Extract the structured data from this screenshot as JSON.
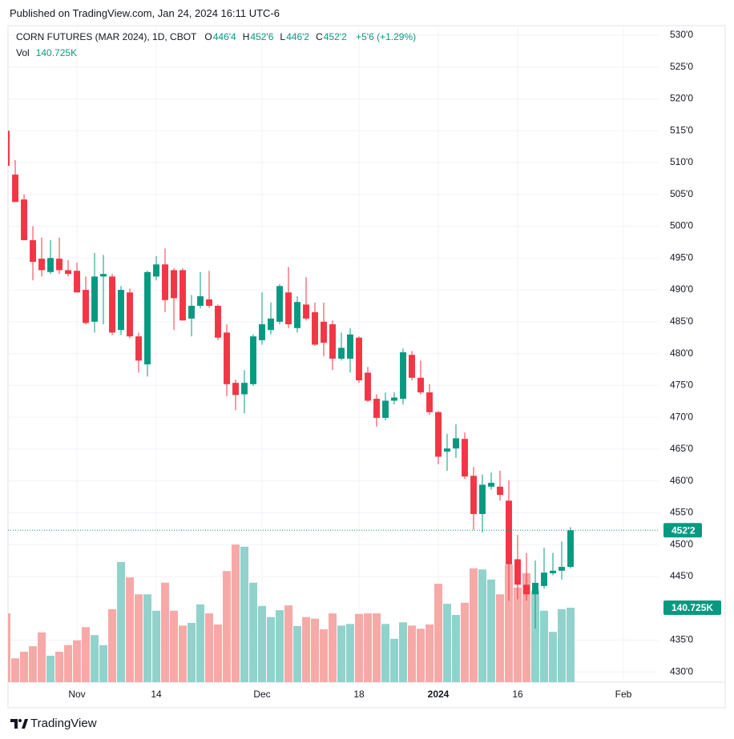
{
  "header": {
    "published": "Published on TradingView.com, Jan 24, 2024 16:11 UTC-6"
  },
  "footer": {
    "brand": "TradingView"
  },
  "chart_data": {
    "type": "candlestick",
    "title": "CORN FUTURES (MAR 2024), 1D, CBOT",
    "legend": {
      "ohlc": [
        {
          "key": "O",
          "label": "446'4"
        },
        {
          "key": "H",
          "label": "452'6"
        },
        {
          "key": "L",
          "label": "446'2"
        },
        {
          "key": "C",
          "label": "452'2"
        }
      ],
      "change": "+5'6 (+1.29%)"
    },
    "last_price_label": "452'2",
    "up_color": "#089981",
    "down_color": "#f23645",
    "open": [
      515,
      508.1,
      504.2,
      497.8,
      494.9,
      492.8,
      494.9,
      493.1,
      493,
      490,
      485,
      492.1,
      492.1,
      483.7,
      489.6,
      482.7,
      478.3,
      492.1,
      494,
      493.1,
      493.1,
      485.5,
      487.5,
      488.5,
      487.5,
      483.3,
      475.4,
      473.6,
      475.2,
      482.1,
      483.7,
      485,
      489.6,
      484,
      487.7,
      486.5,
      485,
      484.6,
      479.2,
      479.2,
      482.5,
      477,
      472.9,
      469.9,
      472.6,
      472.9,
      479.8,
      476.2,
      473.9,
      470.8,
      464.6,
      465.1,
      466.6,
      460.8,
      454.8,
      459.1,
      459.1,
      456.9,
      447.7,
      443.7,
      442.2,
      443.5,
      445.5,
      445.9,
      446.5
    ],
    "high": [
      515.9,
      510.4,
      505,
      500,
      498.2,
      497.8,
      498.2,
      494.7,
      494.3,
      492.1,
      495.8,
      495.5,
      492.5,
      490.6,
      490.2,
      483.3,
      493,
      495.3,
      496.5,
      493.4,
      493.4,
      489.2,
      492.8,
      493,
      487.7,
      484.6,
      475.9,
      477.4,
      483,
      489.6,
      488,
      490.9,
      493.6,
      489,
      492,
      488,
      488,
      485.2,
      483.3,
      484,
      482.7,
      477.9,
      473.6,
      473.9,
      473.9,
      480.8,
      480.4,
      478.9,
      475.2,
      471,
      467.4,
      468.9,
      467.6,
      462.2,
      461,
      461.3,
      461.6,
      460.1,
      451.5,
      448.7,
      447.5,
      449.5,
      448.7,
      450.5,
      452.75
    ],
    "low": [
      508.9,
      503.8,
      497.8,
      491.5,
      492.1,
      492.5,
      492.5,
      492.1,
      489.6,
      484.6,
      483.3,
      484.6,
      482.9,
      482.9,
      482.4,
      477,
      476.4,
      491.5,
      486.5,
      483.7,
      485.2,
      482.7,
      487.1,
      487.2,
      482.1,
      473.3,
      471.1,
      470.6,
      474.9,
      481.4,
      483,
      484.6,
      484,
      483.3,
      485.2,
      481.2,
      479.6,
      477.4,
      478.9,
      477,
      475.4,
      472.4,
      468.5,
      469.5,
      472,
      472,
      475.8,
      473.6,
      470.4,
      462.6,
      461.6,
      463.6,
      460.3,
      452.3,
      451.9,
      458.6,
      456.9,
      441.2,
      441.4,
      441.2,
      436.8,
      443.1,
      445.2,
      444.5,
      446.25
    ],
    "close": [
      509.5,
      503.8,
      497.8,
      494.4,
      493.1,
      495,
      493.1,
      492.5,
      489.6,
      484.8,
      492.1,
      492.5,
      483.3,
      490,
      482.7,
      478.9,
      492.8,
      494,
      488.4,
      488.7,
      485.2,
      487.5,
      489,
      487.5,
      482.5,
      475.2,
      473.5,
      475.4,
      482.7,
      484.6,
      485.5,
      490.6,
      484.6,
      488.1,
      485.5,
      481.4,
      481.7,
      479.2,
      480.9,
      483,
      475.8,
      472.6,
      469.9,
      472.6,
      473.1,
      480.2,
      476.2,
      473.9,
      470.8,
      463.8,
      465.1,
      466.7,
      460.7,
      454.8,
      459.4,
      459.7,
      457.8,
      446.9,
      443.7,
      442.2,
      444,
      445.6,
      445.9,
      446.5,
      452.25
    ],
    "volume": {
      "name": "Vol",
      "axis": "y2",
      "up_color": "#92d2cc",
      "down_color": "#f7a9a7",
      "label": "140.725K",
      "values": [
        130000,
        45000,
        57500,
        68000,
        94000,
        50000,
        57500,
        70000,
        79000,
        104000,
        89000,
        70000,
        138000,
        227000,
        198000,
        166000,
        166000,
        135000,
        188000,
        135000,
        107000,
        112000,
        147000,
        130000,
        109000,
        210000,
        260000,
        256000,
        188000,
        144000,
        123000,
        136000,
        145000,
        106000,
        123000,
        120000,
        100000,
        130000,
        107000,
        110000,
        129000,
        130000,
        130000,
        110000,
        82000,
        113000,
        107000,
        101000,
        109000,
        186000,
        148000,
        127000,
        150000,
        215000,
        213000,
        194000,
        166000,
        222000,
        179000,
        206000,
        173000,
        135000,
        95000,
        138000,
        140725
      ]
    },
    "ylim": [
      428.4,
      531.5
    ],
    "yticks": [
      {
        "value": 530,
        "label": "530'0"
      },
      {
        "value": 525,
        "label": "525'0"
      },
      {
        "value": 520,
        "label": "520'0"
      },
      {
        "value": 515,
        "label": "515'0"
      },
      {
        "value": 510,
        "label": "510'0"
      },
      {
        "value": 505,
        "label": "505'0"
      },
      {
        "value": 500,
        "label": "500'0"
      },
      {
        "value": 495,
        "label": "495'0"
      },
      {
        "value": 490,
        "label": "490'0"
      },
      {
        "value": 485,
        "label": "485'0"
      },
      {
        "value": 480,
        "label": "480'0"
      },
      {
        "value": 475,
        "label": "475'0"
      },
      {
        "value": 470,
        "label": "470'0"
      },
      {
        "value": 465,
        "label": "465'0"
      },
      {
        "value": 460,
        "label": "460'0"
      },
      {
        "value": 455,
        "label": "455'0"
      },
      {
        "value": 450,
        "label": "450'0"
      },
      {
        "value": 445,
        "label": "445'0"
      },
      {
        "value": 435,
        "label": "435'0"
      },
      {
        "value": 430,
        "label": "430'0"
      }
    ],
    "y2lim": [
      0,
      1240800
    ],
    "xlim": [
      0.18,
      74
    ],
    "xticks": [
      {
        "value": 8,
        "label": "Nov"
      },
      {
        "value": 17,
        "label": "14"
      },
      {
        "value": 29,
        "label": "Dec"
      },
      {
        "value": 40,
        "label": "18"
      },
      {
        "value": 49,
        "label": "2024",
        "bold": true
      },
      {
        "value": 58,
        "label": "16"
      },
      {
        "value": 70,
        "label": "Feb"
      }
    ],
    "grid": true
  }
}
